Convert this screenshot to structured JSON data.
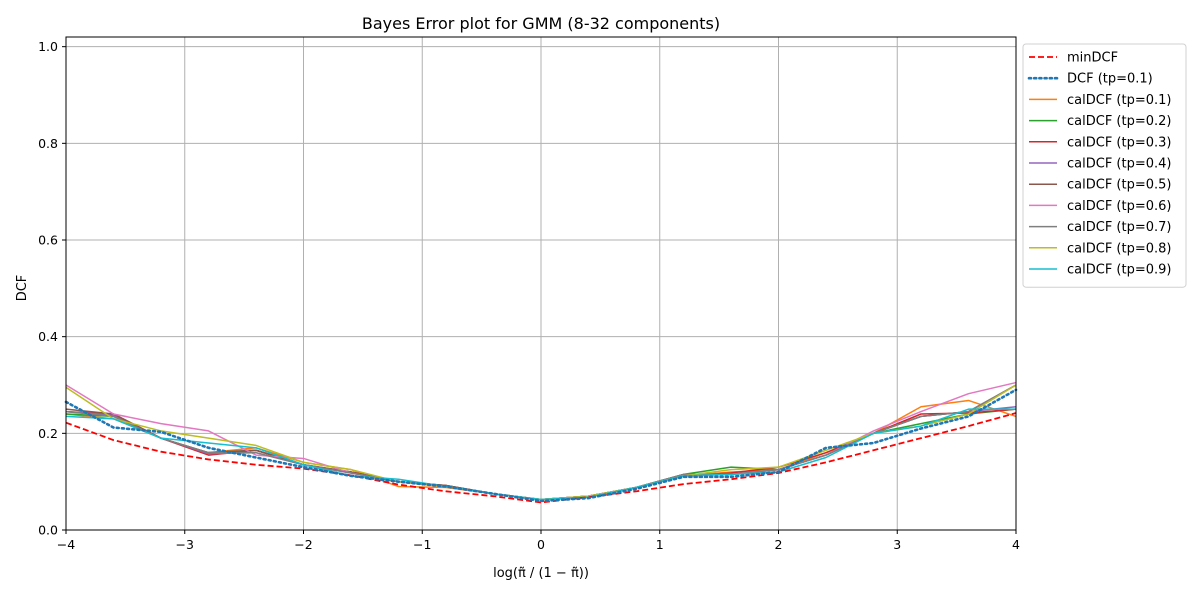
{
  "chart_data": {
    "type": "line",
    "title": "Bayes Error plot for GMM (8-32 components)",
    "xlabel": "log(π̃ / (1 − π̃))",
    "ylabel": "DCF",
    "xlim": [
      -4,
      4
    ],
    "ylim": [
      0,
      1.02
    ],
    "xticks": [
      -4,
      -3,
      -2,
      -1,
      0,
      1,
      2,
      3,
      4
    ],
    "xtick_labels": [
      "−4",
      "−3",
      "−2",
      "−1",
      "0",
      "1",
      "2",
      "3",
      "4"
    ],
    "yticks": [
      0,
      0.2,
      0.4,
      0.6,
      0.8,
      1.0
    ],
    "ytick_labels": [
      "0.0",
      "0.2",
      "0.4",
      "0.6",
      "0.8",
      "1.0"
    ],
    "grid": true,
    "legend_position": "outside-top-right",
    "x": [
      -4.0,
      -3.6,
      -3.2,
      -2.8,
      -2.4,
      -2.0,
      -1.6,
      -1.2,
      -0.8,
      -0.4,
      0.0,
      0.4,
      0.8,
      1.2,
      1.6,
      2.0,
      2.4,
      2.8,
      3.2,
      3.6,
      4.0
    ],
    "series": [
      {
        "name": "minDCF",
        "color": "#ff0000",
        "dash": "dashed",
        "values": [
          0.222,
          0.186,
          0.162,
          0.146,
          0.135,
          0.127,
          0.113,
          0.094,
          0.08,
          0.07,
          0.057,
          0.068,
          0.08,
          0.095,
          0.105,
          0.118,
          0.14,
          0.165,
          0.19,
          0.215,
          0.242
        ]
      },
      {
        "name": "DCF (tp=0.1)",
        "color": "#1f77b4",
        "dash": "dotted",
        "values": [
          0.265,
          0.212,
          0.203,
          0.17,
          0.15,
          0.13,
          0.112,
          0.1,
          0.09,
          0.075,
          0.06,
          0.066,
          0.085,
          0.11,
          0.11,
          0.12,
          0.17,
          0.18,
          0.21,
          0.235,
          0.29
        ]
      },
      {
        "name": "calDCF (tp=0.1)",
        "color": "#ff7f0e",
        "dash": "solid",
        "values": [
          0.24,
          0.23,
          0.19,
          0.16,
          0.17,
          0.14,
          0.125,
          0.09,
          0.088,
          0.075,
          0.062,
          0.07,
          0.088,
          0.112,
          0.12,
          0.125,
          0.16,
          0.2,
          0.255,
          0.268,
          0.235
        ]
      },
      {
        "name": "calDCF (tp=0.2)",
        "color": "#2ca02c",
        "dash": "solid",
        "values": [
          0.24,
          0.235,
          0.19,
          0.16,
          0.165,
          0.135,
          0.12,
          0.1,
          0.092,
          0.075,
          0.063,
          0.07,
          0.088,
          0.115,
          0.13,
          0.125,
          0.155,
          0.2,
          0.22,
          0.24,
          0.25
        ]
      },
      {
        "name": "calDCF (tp=0.3)",
        "color": "#d62728",
        "dash": "solid",
        "values": [
          0.245,
          0.24,
          0.19,
          0.155,
          0.165,
          0.135,
          0.12,
          0.1,
          0.092,
          0.075,
          0.063,
          0.07,
          0.088,
          0.112,
          0.118,
          0.13,
          0.16,
          0.2,
          0.24,
          0.242,
          0.25
        ]
      },
      {
        "name": "calDCF (tp=0.4)",
        "color": "#9467bd",
        "dash": "solid",
        "values": [
          0.245,
          0.238,
          0.19,
          0.158,
          0.16,
          0.135,
          0.118,
          0.1,
          0.09,
          0.075,
          0.063,
          0.07,
          0.088,
          0.115,
          0.115,
          0.125,
          0.155,
          0.2,
          0.235,
          0.245,
          0.255
        ]
      },
      {
        "name": "calDCF (tp=0.5)",
        "color": "#8c564b",
        "dash": "solid",
        "values": [
          0.25,
          0.24,
          0.19,
          0.16,
          0.165,
          0.135,
          0.12,
          0.1,
          0.092,
          0.075,
          0.063,
          0.07,
          0.088,
          0.115,
          0.115,
          0.125,
          0.155,
          0.2,
          0.235,
          0.245,
          0.3
        ]
      },
      {
        "name": "calDCF (tp=0.6)",
        "color": "#e377c2",
        "dash": "solid",
        "values": [
          0.3,
          0.24,
          0.22,
          0.205,
          0.155,
          0.148,
          0.118,
          0.1,
          0.09,
          0.075,
          0.063,
          0.07,
          0.088,
          0.112,
          0.115,
          0.125,
          0.155,
          0.205,
          0.245,
          0.282,
          0.305
        ]
      },
      {
        "name": "calDCF (tp=0.7)",
        "color": "#7f7f7f",
        "dash": "solid",
        "values": [
          0.245,
          0.235,
          0.19,
          0.16,
          0.16,
          0.135,
          0.118,
          0.1,
          0.09,
          0.075,
          0.063,
          0.07,
          0.088,
          0.115,
          0.115,
          0.125,
          0.155,
          0.2,
          0.235,
          0.245,
          0.3
        ]
      },
      {
        "name": "calDCF (tp=0.8)",
        "color": "#bcbd22",
        "dash": "solid",
        "values": [
          0.295,
          0.23,
          0.205,
          0.19,
          0.175,
          0.14,
          0.125,
          0.1,
          0.09,
          0.075,
          0.063,
          0.07,
          0.088,
          0.112,
          0.125,
          0.13,
          0.165,
          0.2,
          0.215,
          0.24,
          0.3
        ]
      },
      {
        "name": "calDCF (tp=0.9)",
        "color": "#17becf",
        "dash": "solid",
        "values": [
          0.235,
          0.23,
          0.19,
          0.18,
          0.17,
          0.135,
          0.112,
          0.105,
          0.09,
          0.075,
          0.063,
          0.068,
          0.088,
          0.112,
          0.115,
          0.12,
          0.15,
          0.2,
          0.215,
          0.25,
          0.25
        ]
      }
    ]
  }
}
